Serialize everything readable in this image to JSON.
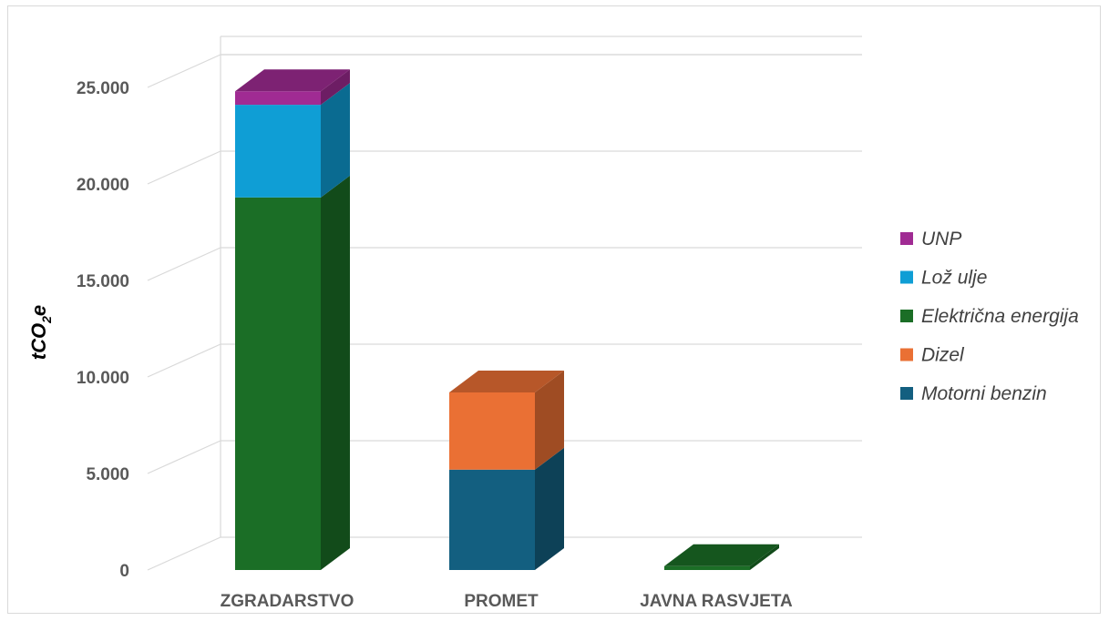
{
  "chart_data": {
    "type": "bar",
    "stacked": true,
    "three_d": true,
    "categories": [
      "ZGRADARSTVO",
      "PROMET",
      "JAVNA RASVJETA"
    ],
    "ylabel_main": "tCO",
    "ylabel_sub": "2",
    "ylabel_tail": "e",
    "ylim": [
      0,
      25000
    ],
    "yticks": [
      0,
      5000,
      10000,
      15000,
      20000,
      25000
    ],
    "ytick_labels": [
      "0",
      "5.000",
      "10.000",
      "15.000",
      "20.000",
      "25.000"
    ],
    "grid": true,
    "legend_position": "right",
    "series": [
      {
        "name": "Motorni benzin",
        "color": "#135f80",
        "values": [
          0,
          5200,
          0
        ]
      },
      {
        "name": "Dizel",
        "color": "#ea7034",
        "values": [
          0,
          4000,
          0
        ]
      },
      {
        "name": "Električna energija",
        "color": "#1b6e26",
        "values": [
          19300,
          0,
          200
        ]
      },
      {
        "name": "Lož ulje",
        "color": "#0f9ed5",
        "values": [
          4800,
          0,
          0
        ]
      },
      {
        "name": "UNP",
        "color": "#a02b93",
        "values": [
          700,
          0,
          0
        ]
      }
    ],
    "legend_order": [
      "UNP",
      "Lož ulje",
      "Električna energija",
      "Dizel",
      "Motorni benzin"
    ]
  }
}
